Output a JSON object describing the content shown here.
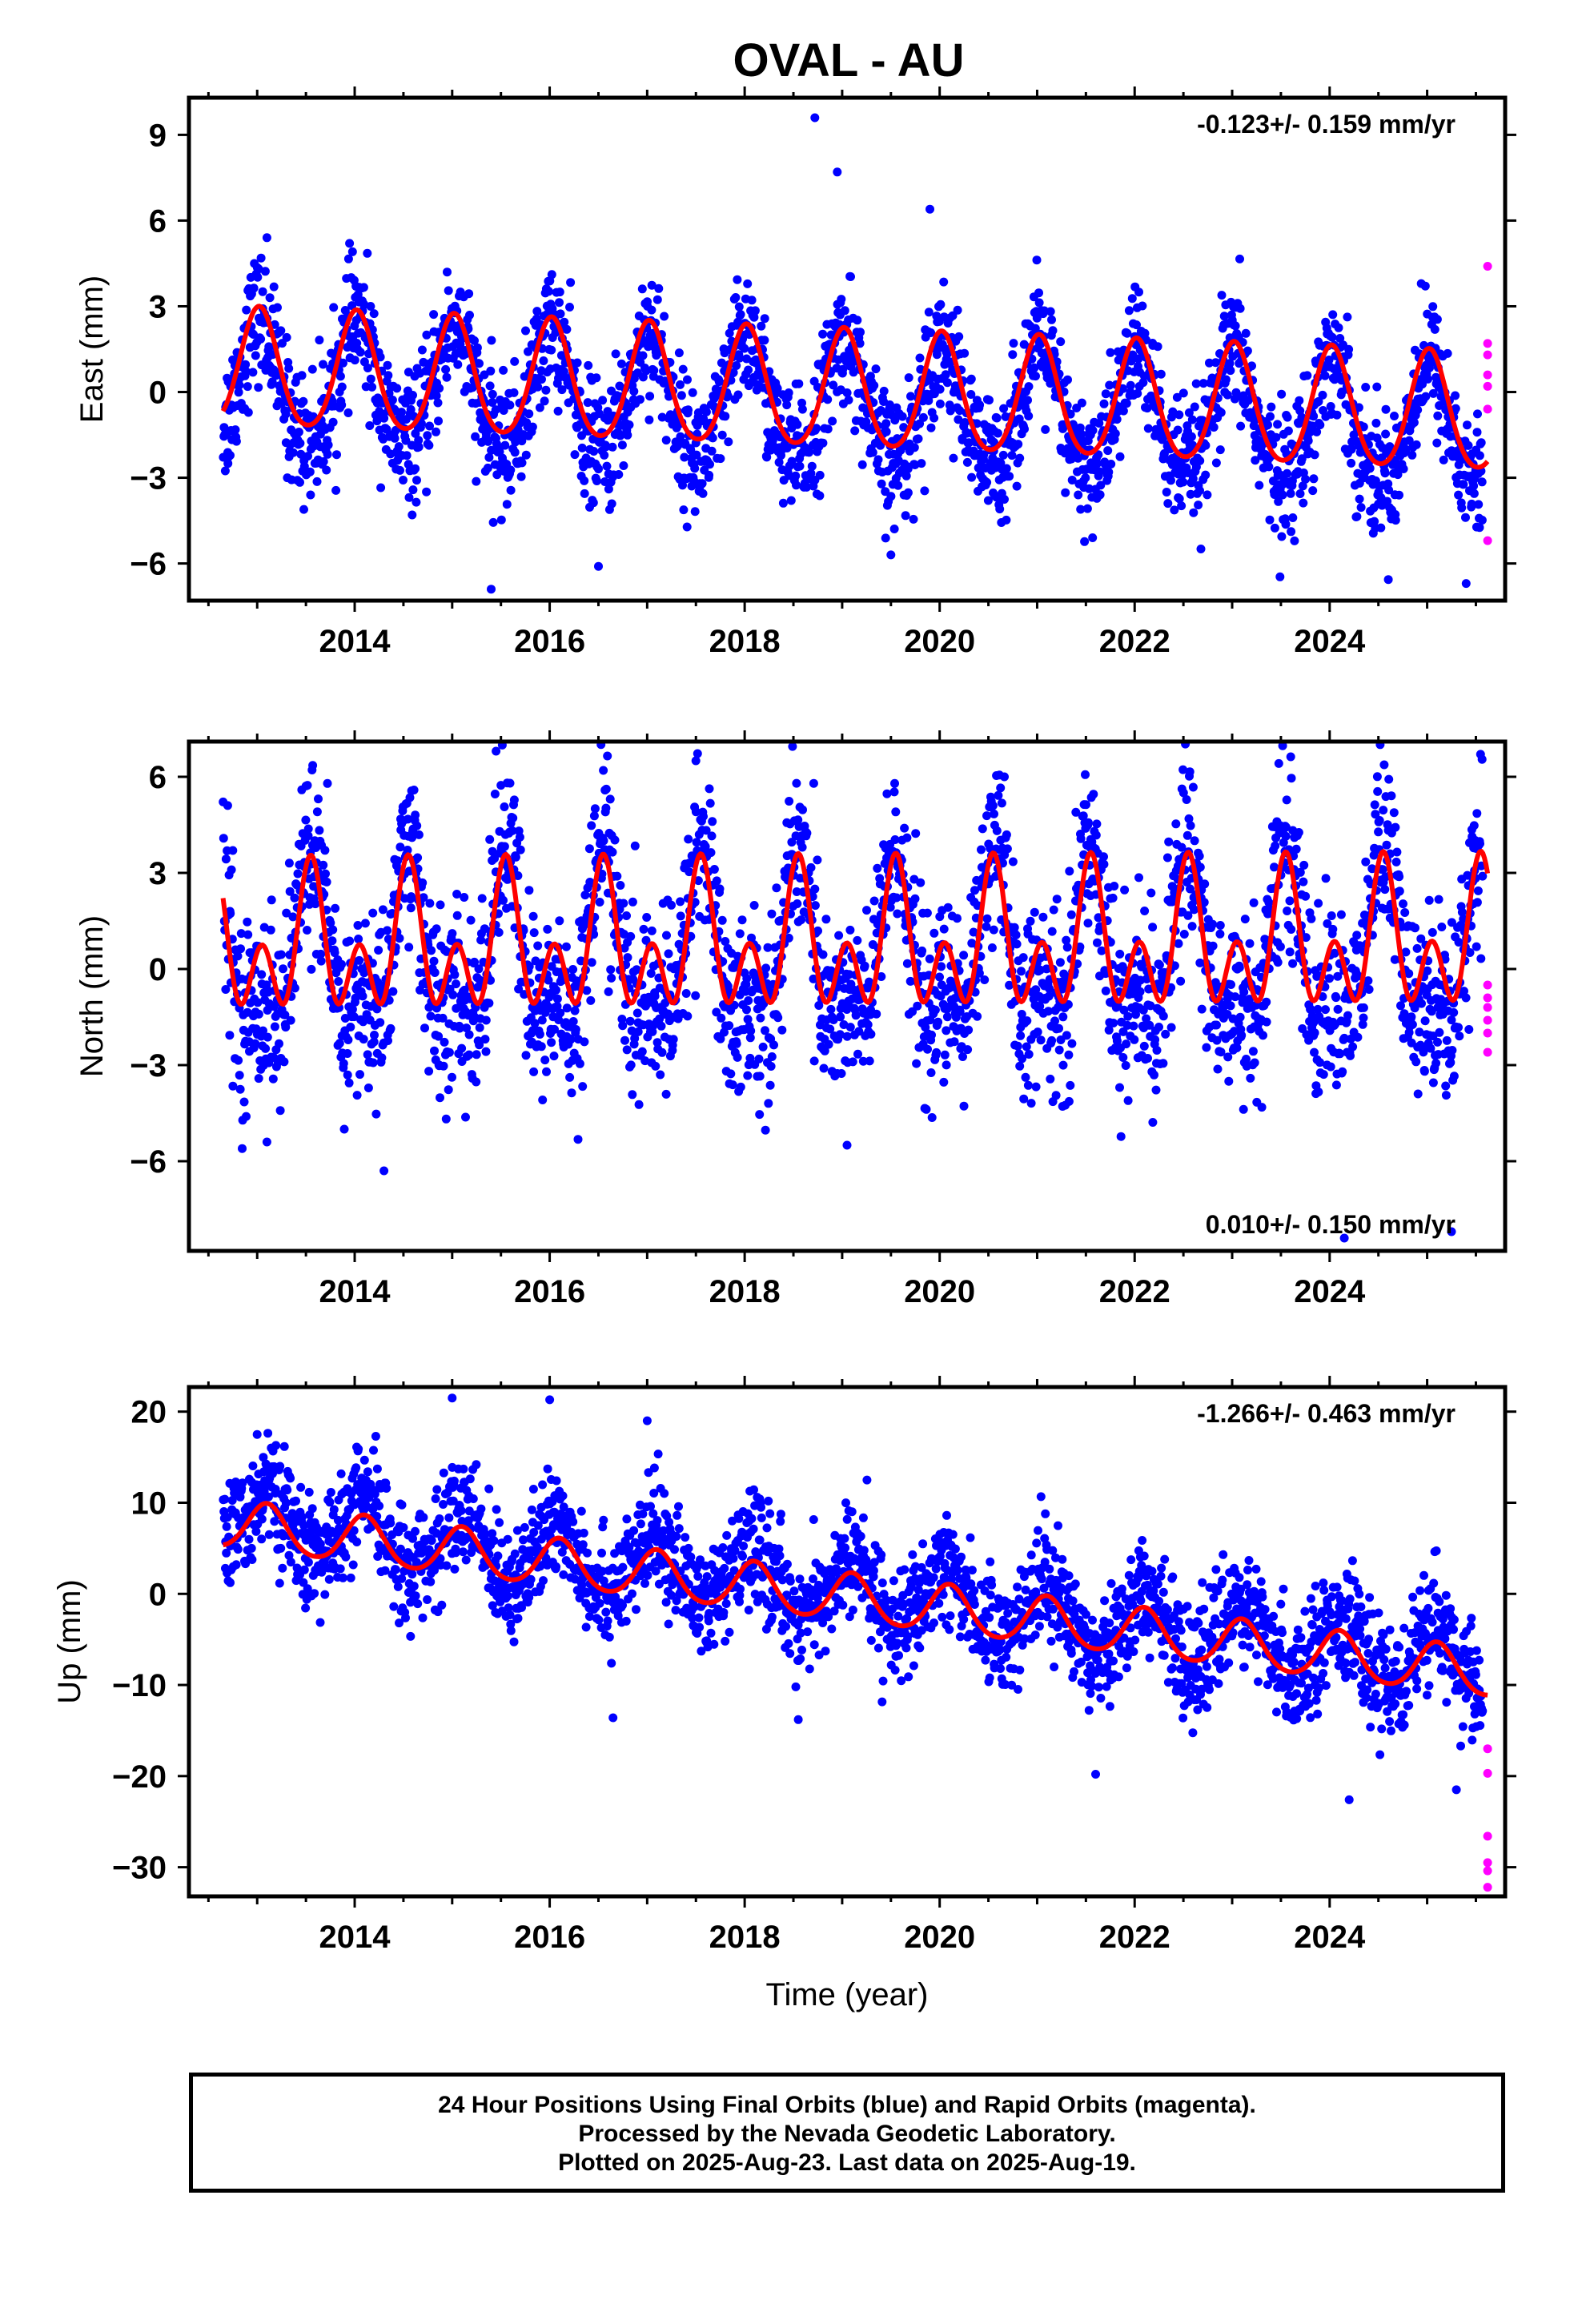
{
  "title": "OVAL - AU",
  "chart_data": [
    {
      "type": "scatter",
      "ylabel": "East (mm)",
      "xlabel": "",
      "xlim": [
        2012.3,
        2025.8
      ],
      "ylim": [
        -7.3,
        10.3
      ],
      "yticks": [
        -6,
        -3,
        0,
        3,
        6,
        9
      ],
      "xticks": [
        2014,
        2016,
        2018,
        2020,
        2022,
        2024
      ],
      "rate_text": "-0.123+/- 0.159 mm/yr",
      "rate_position": "top-right",
      "data_span": [
        2012.65,
        2025.62
      ],
      "series": [
        {
          "kind": "final-orbit-positions",
          "color": "#0000ff",
          "trend": 0.3,
          "rate": -0.123,
          "annual_amp": 2.1,
          "annual_phase": 0.02,
          "semi_amp": 0.3,
          "scatter": 1.1,
          "sample_points": [
            [
              2012.7,
              -2.5
            ],
            [
              2013.1,
              5.4
            ],
            [
              2015.4,
              -6.9
            ],
            [
              2016.5,
              -6.1
            ],
            [
              2018.72,
              9.6
            ],
            [
              2018.95,
              7.7
            ],
            [
              2019.5,
              -5.7
            ],
            [
              2019.9,
              6.4
            ],
            [
              2025.4,
              -6.7
            ]
          ]
        },
        {
          "kind": "rapid-orbit-positions",
          "color": "#ff00ff",
          "points": [
            [
              2025.62,
              4.4
            ],
            [
              2025.62,
              1.7
            ],
            [
              2025.62,
              1.3
            ],
            [
              2025.62,
              0.6
            ],
            [
              2025.62,
              0.2
            ],
            [
              2025.62,
              -0.6
            ],
            [
              2025.62,
              -5.2
            ]
          ]
        },
        {
          "kind": "model-fit",
          "color": "#ff0000",
          "trend": 0.75,
          "rate": -0.123,
          "annual_amp": 2.05,
          "annual_phase": 0.02,
          "semi_amp": 0.25
        }
      ]
    },
    {
      "type": "scatter",
      "ylabel": "North (mm)",
      "xlabel": "",
      "xlim": [
        2012.3,
        2025.8
      ],
      "ylim": [
        -8.8,
        7.1
      ],
      "yticks": [
        -6,
        -3,
        0,
        3,
        6
      ],
      "xticks": [
        2014,
        2016,
        2018,
        2020,
        2022,
        2024
      ],
      "rate_text": "0.010+/- 0.150 mm/yr",
      "rate_position": "bottom-right",
      "data_span": [
        2012.65,
        2025.62
      ],
      "series": [
        {
          "kind": "final-orbit-positions",
          "color": "#0000ff",
          "trend": 0.3,
          "rate": 0.01,
          "annual_amp": 2.4,
          "annual_phase": 0.55,
          "semi_amp": 1.2,
          "scatter": 1.4,
          "sample_points": [
            [
              2012.75,
              3.7
            ],
            [
              2013.1,
              -5.4
            ],
            [
              2014.3,
              -6.3
            ],
            [
              2015.45,
              6.8
            ],
            [
              2016.55,
              6.2
            ],
            [
              2017.5,
              6.5
            ],
            [
              2019.05,
              -5.5
            ],
            [
              2024.15,
              -8.4
            ],
            [
              2025.25,
              -8.2
            ]
          ]
        },
        {
          "kind": "rapid-orbit-positions",
          "color": "#ff00ff",
          "points": [
            [
              2025.62,
              -0.5
            ],
            [
              2025.62,
              -0.9
            ],
            [
              2025.62,
              -1.2
            ],
            [
              2025.62,
              -1.6
            ],
            [
              2025.62,
              -2.0
            ],
            [
              2025.62,
              -2.6
            ]
          ]
        },
        {
          "kind": "model-fit",
          "color": "#ff0000",
          "trend": 0.6,
          "rate": 0.01,
          "annual_amp": 1.4,
          "annual_phase": 0.55,
          "semi_amp": 1.55
        }
      ]
    },
    {
      "type": "scatter",
      "ylabel": "Up (mm)",
      "xlabel": "Time (year)",
      "xlim": [
        2012.3,
        2025.8
      ],
      "ylim": [
        -33.2,
        22.7
      ],
      "yticks": [
        -30,
        -20,
        -10,
        0,
        10,
        20
      ],
      "xticks": [
        2014,
        2016,
        2018,
        2020,
        2022,
        2024
      ],
      "rate_text": "-1.266+/- 0.463 mm/yr",
      "rate_position": "top-right",
      "data_span": [
        2012.65,
        2025.62
      ],
      "series": [
        {
          "kind": "final-orbit-positions",
          "color": "#0000ff",
          "trend": 8.4,
          "rate": -1.266,
          "annual_amp": 3.3,
          "annual_phase": 0.1,
          "semi_amp": 0.4,
          "scatter": 3.0,
          "sample_points": [
            [
              2013.0,
              17.5
            ],
            [
              2015.0,
              21.5
            ],
            [
              2016.0,
              21.3
            ],
            [
              2016.65,
              -13.6
            ],
            [
              2017.0,
              19.0
            ],
            [
              2018.55,
              -13.8
            ],
            [
              2021.6,
              -19.8
            ],
            [
              2024.2,
              -22.6
            ],
            [
              2025.3,
              -21.5
            ]
          ]
        },
        {
          "kind": "rapid-orbit-positions",
          "color": "#ff00ff",
          "points": [
            [
              2025.62,
              -17.0
            ],
            [
              2025.62,
              -19.7
            ],
            [
              2025.62,
              -26.6
            ],
            [
              2025.62,
              -29.5
            ],
            [
              2025.62,
              -30.4
            ],
            [
              2025.62,
              -32.2
            ]
          ]
        },
        {
          "kind": "model-fit",
          "color": "#ff0000",
          "trend": 7.6,
          "rate": -1.266,
          "annual_amp": 2.6,
          "annual_phase": 0.1,
          "semi_amp": 0.3
        }
      ]
    }
  ],
  "footer": {
    "line1": "24 Hour Positions Using Final Orbits (blue) and Rapid Orbits (magenta).",
    "line2": "Processed by the Nevada Geodetic Laboratory.",
    "line3": "Plotted on 2025-Aug-23. Last data on 2025-Aug-19."
  }
}
